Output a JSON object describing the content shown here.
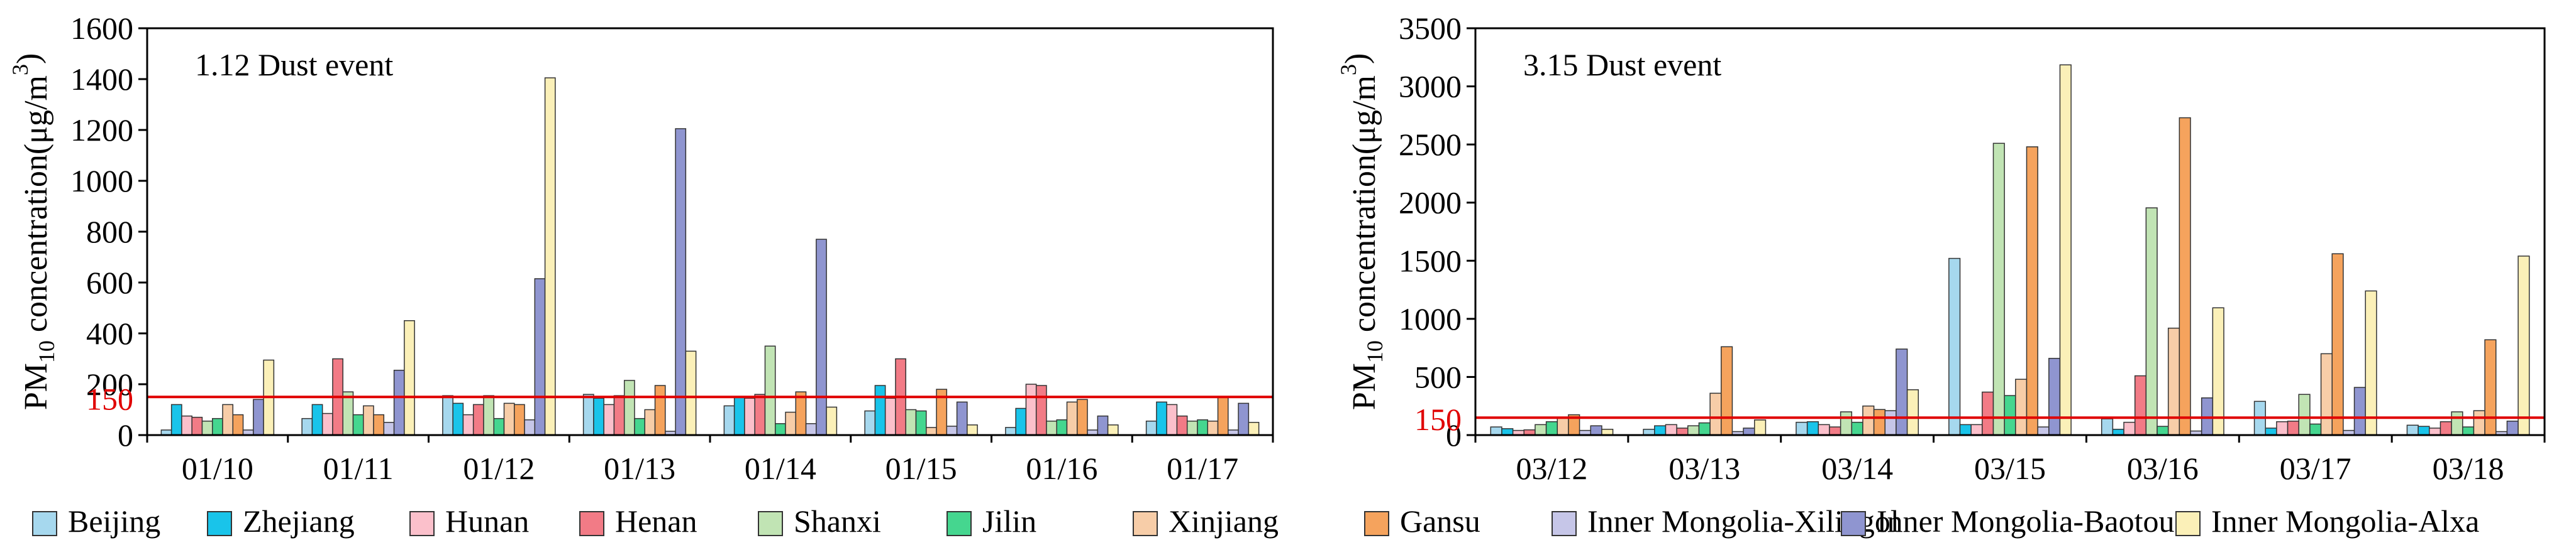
{
  "chart_data": [
    {
      "type": "bar",
      "title": "1.12  Dust event",
      "ylabel_main": "PM",
      "ylabel_sub": "10",
      "ylabel_rest": " concentration(μg/m",
      "ylabel_sup": "3",
      "ylabel_close": ")",
      "ylim": [
        0,
        1600
      ],
      "yticks": [
        0,
        200,
        400,
        600,
        800,
        1000,
        1200,
        1400,
        1600
      ],
      "reference_line": {
        "value": 150,
        "label": "150",
        "color": "#e00000"
      },
      "categories": [
        "01/10",
        "01/11",
        "01/12",
        "01/13",
        "01/14",
        "01/15",
        "01/16",
        "01/17"
      ],
      "series": [
        {
          "name": "Beijing",
          "values": [
            20,
            65,
            155,
            160,
            115,
            95,
            30,
            55
          ]
        },
        {
          "name": "Zhejiang",
          "values": [
            120,
            120,
            125,
            145,
            150,
            195,
            105,
            130
          ]
        },
        {
          "name": "Hunan",
          "values": [
            75,
            85,
            80,
            120,
            145,
            145,
            200,
            120
          ]
        },
        {
          "name": "Henan",
          "values": [
            70,
            300,
            120,
            155,
            160,
            300,
            195,
            75
          ]
        },
        {
          "name": "Shanxi",
          "values": [
            55,
            170,
            155,
            215,
            350,
            100,
            55,
            55
          ]
        },
        {
          "name": "Jilin",
          "values": [
            65,
            80,
            65,
            65,
            45,
            95,
            60,
            60
          ]
        },
        {
          "name": "Xinjiang",
          "values": [
            120,
            115,
            125,
            100,
            90,
            30,
            130,
            55
          ]
        },
        {
          "name": "Gansu",
          "values": [
            80,
            80,
            120,
            195,
            170,
            180,
            140,
            150
          ]
        },
        {
          "name": "Inner Mongolia-Xilingol",
          "values": [
            20,
            50,
            60,
            15,
            45,
            35,
            20,
            20
          ]
        },
        {
          "name": "Inner Mongolia-Baotou",
          "values": [
            140,
            255,
            615,
            1205,
            770,
            130,
            75,
            125
          ]
        },
        {
          "name": "Inner Mongolia-Alxa",
          "values": [
            295,
            450,
            1405,
            330,
            110,
            40,
            40,
            50
          ]
        }
      ]
    },
    {
      "type": "bar",
      "title": "3.15  Dust event",
      "ylabel_main": "PM",
      "ylabel_sub": "10",
      "ylabel_rest": " concentration(μg/m",
      "ylabel_sup": "3",
      "ylabel_close": ")",
      "ylim": [
        0,
        3500
      ],
      "yticks": [
        0,
        500,
        1000,
        1500,
        2000,
        2500,
        3000,
        3500
      ],
      "reference_line": {
        "value": 150,
        "label": "150",
        "color": "#e00000"
      },
      "categories": [
        "03/12",
        "03/13",
        "03/14",
        "03/15",
        "03/16",
        "03/17",
        "03/18"
      ],
      "series": [
        {
          "name": "Beijing",
          "values": [
            70,
            50,
            110,
            1520,
            140,
            290,
            85
          ]
        },
        {
          "name": "Zhejiang",
          "values": [
            55,
            80,
            115,
            90,
            50,
            60,
            75
          ]
        },
        {
          "name": "Hunan",
          "values": [
            40,
            90,
            90,
            90,
            110,
            115,
            60
          ]
        },
        {
          "name": "Henan",
          "values": [
            45,
            60,
            70,
            370,
            510,
            120,
            115
          ]
        },
        {
          "name": "Shanxi",
          "values": [
            90,
            80,
            200,
            2510,
            1955,
            350,
            200
          ]
        },
        {
          "name": "Jilin",
          "values": [
            115,
            105,
            110,
            340,
            75,
            95,
            70
          ]
        },
        {
          "name": "Xinjiang",
          "values": [
            150,
            360,
            250,
            480,
            920,
            700,
            210
          ]
        },
        {
          "name": "Gansu",
          "values": [
            175,
            760,
            220,
            2480,
            2730,
            1560,
            820
          ]
        },
        {
          "name": "Inner Mongolia-Xilingol",
          "values": [
            40,
            30,
            210,
            70,
            35,
            40,
            30
          ]
        },
        {
          "name": "Inner Mongolia-Baotou",
          "values": [
            80,
            60,
            740,
            660,
            320,
            410,
            120
          ]
        },
        {
          "name": "Inner Mongolia-Alxa",
          "values": [
            50,
            130,
            390,
            3185,
            1095,
            1240,
            1540
          ]
        }
      ]
    }
  ],
  "legend": {
    "placement": "bottom",
    "entries": [
      {
        "name": "Beijing",
        "color": "#a6d8ee"
      },
      {
        "name": "Zhejiang",
        "color": "#19c4ea"
      },
      {
        "name": "Hunan",
        "color": "#fbc0cb"
      },
      {
        "name": "Henan",
        "color": "#f27b86"
      },
      {
        "name": "Shanxi",
        "color": "#c1e4b4"
      },
      {
        "name": "Jilin",
        "color": "#45d68f"
      },
      {
        "name": "Xinjiang",
        "color": "#f7cda8"
      },
      {
        "name": "Gansu",
        "color": "#f5a35d"
      },
      {
        "name": "Inner Mongolia-Xilingol",
        "color": "#c6c6e8"
      },
      {
        "name": "Inner Mongolia-Baotou",
        "color": "#8f95d0"
      },
      {
        "name": "Inner Mongolia-Alxa",
        "color": "#fbf0b8"
      }
    ]
  }
}
